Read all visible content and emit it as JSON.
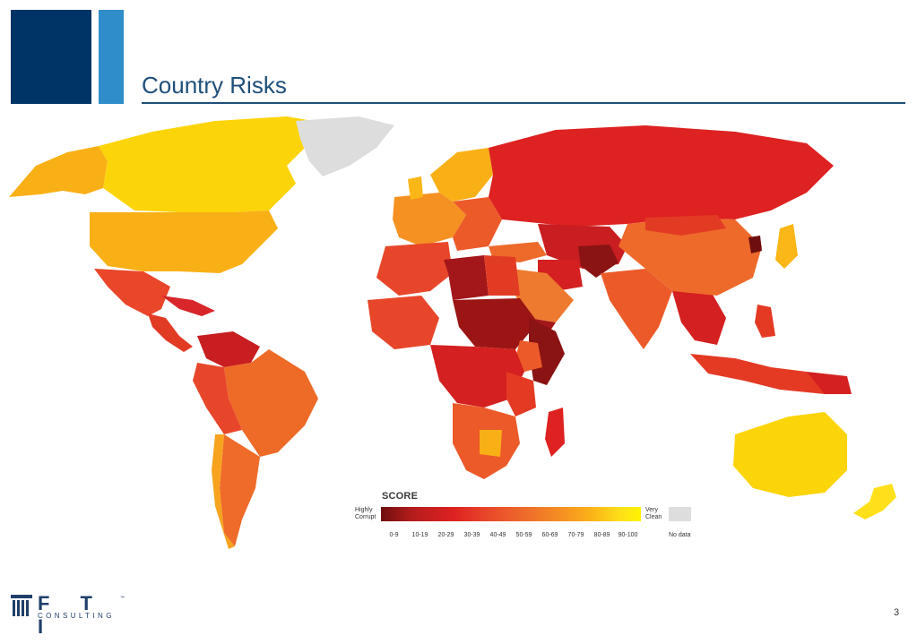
{
  "header": {
    "title": "Country Risks"
  },
  "legend": {
    "title": "SCORE",
    "left_label": "Highly Corrupt",
    "right_label": "Very Clean",
    "nodata_label": "No data",
    "ticks": [
      "0-9",
      "10-19",
      "20-29",
      "30-39",
      "40-49",
      "50-59",
      "60-69",
      "70-79",
      "80-89",
      "90-100"
    ],
    "colors": [
      "#6f0e0e",
      "#a3161a",
      "#cc1f1f",
      "#e43a24",
      "#ec5a29",
      "#f07a2a",
      "#f5962a",
      "#f9b51c",
      "#fcd316",
      "#fff200"
    ],
    "nodata_color": "#dddddd"
  },
  "footer": {
    "logo_text": "F T I",
    "logo_tm": "™",
    "logo_sub": "CONSULTING",
    "page_number": "3"
  }
}
